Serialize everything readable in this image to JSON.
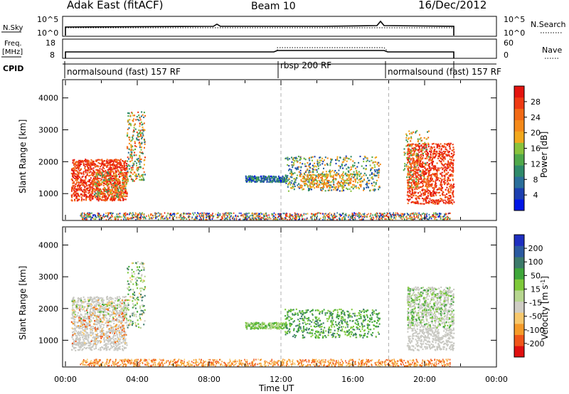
{
  "header": {
    "station": "Adak East (fitACF)",
    "beam": "Beam 10",
    "date": "16/Dec/2012"
  },
  "colors": {
    "power_scale": [
      "#0016e6",
      "#1c3fb0",
      "#2a6e9a",
      "#2f8a6a",
      "#4fa84a",
      "#89c23c",
      "#f2a81d",
      "#f58a1a",
      "#f26a16",
      "#ef3a13",
      "#e4140f"
    ],
    "velocity_scale": [
      "#e01010",
      "#f0561a",
      "#f59b2a",
      "#f7c86d",
      "#cfcdc4",
      "#b7d690",
      "#7ec93a",
      "#3ea63a",
      "#3c7a6a",
      "#2b5aa0",
      "#1e2fc0"
    ],
    "scatter_gray": "#c8c8c2",
    "dash_line": "#b0b0b0"
  },
  "panels": {
    "nsky": {
      "left_label": "N.Sky",
      "left_ticks": [
        "10^5",
        "10^0"
      ],
      "right_ticks": [
        "10^5",
        "10^0"
      ],
      "right_label": "N.Search"
    },
    "freq": {
      "left_label_top": "Freq.",
      "left_label_unit": "[MHz]",
      "left_ticks": [
        "18",
        "8"
      ],
      "right_ticks": [
        "60",
        "0"
      ],
      "right_label": "Nave"
    },
    "cpid": {
      "label": "CPID",
      "segments": [
        {
          "label": "normalsound (fast) 157 RF",
          "start": 0,
          "end": 12
        },
        {
          "label": "rbsp 200 RF",
          "start": 12,
          "end": 18
        },
        {
          "label": "normalsound (fast) 157 RF",
          "start": 18,
          "end": 21.7
        }
      ]
    }
  },
  "chart_data": [
    {
      "type": "heatmap",
      "title": "",
      "quantity": "Power",
      "xlabel": "",
      "ylabel": "Slant Range [km]",
      "xlim": [
        0,
        24
      ],
      "ylim": [
        180,
        4550
      ],
      "y_ticks": [
        1000,
        2000,
        3000,
        4000
      ],
      "colorbar": {
        "label": "Power [dB]",
        "ticks": [
          4,
          8,
          12,
          16,
          20,
          24,
          28
        ],
        "range": [
          0,
          32
        ]
      },
      "regions": [
        {
          "name": "early evening echoes",
          "t": [
            0.3,
            3.4
          ],
          "range_km": [
            800,
            2100
          ],
          "level_db": "26-30 (red)"
        },
        {
          "name": "near-range plume",
          "t": [
            3.6,
            4.4
          ],
          "range_km": [
            1400,
            3600
          ],
          "level_db": "8-24"
        },
        {
          "name": "midday band",
          "t": [
            10.0,
            12.3
          ],
          "range_km": [
            1350,
            1600
          ],
          "level_db": "6-14"
        },
        {
          "name": "rbsp echo",
          "t": [
            12.2,
            17.5
          ],
          "range_km": [
            1100,
            2200
          ],
          "level_db": "8-22"
        },
        {
          "name": "late echoes",
          "t": [
            19.0,
            21.6
          ],
          "range_km": [
            700,
            2600
          ],
          "level_db": "22-30 (red)"
        },
        {
          "name": "ground scatter band",
          "t": [
            0.8,
            21.4
          ],
          "range_km": [
            200,
            420
          ],
          "level_db": "mixed"
        }
      ]
    },
    {
      "type": "heatmap",
      "title": "",
      "quantity": "Velocity",
      "xlabel": "Time UT",
      "ylabel": "Slant Range [km]",
      "xlim": [
        0,
        24
      ],
      "ylim": [
        180,
        4550
      ],
      "x_ticks": [
        "00:00",
        "04:00",
        "08:00",
        "12:00",
        "16:00",
        "20:00",
        "00:00"
      ],
      "y_ticks": [
        1000,
        2000,
        3000,
        4000
      ],
      "colorbar": {
        "label": "Velocity [m s^-1]",
        "ticks": [
          -200,
          -100,
          -50,
          -15,
          15,
          50,
          100,
          200
        ]
      },
      "regions": [
        {
          "name": "early evening echoes",
          "t": [
            0.3,
            3.4
          ],
          "range_km": [
            700,
            2400
          ],
          "level": "ground scatter (gray) with orange"
        },
        {
          "name": "near-range plume",
          "t": [
            3.6,
            4.4
          ],
          "range_km": [
            1400,
            3500
          ],
          "level": "-15 to 50"
        },
        {
          "name": "midday band",
          "t": [
            10.0,
            12.3
          ],
          "range_km": [
            1350,
            1600
          ],
          "level": "15 to 50 (green)"
        },
        {
          "name": "rbsp echo",
          "t": [
            12.2,
            17.5
          ],
          "range_km": [
            1100,
            2000
          ],
          "level": "15 to 100 (green)"
        },
        {
          "name": "late echoes",
          "t": [
            19.0,
            21.6
          ],
          "range_km": [
            700,
            2700
          ],
          "level": "ground scatter (gray) with green"
        },
        {
          "name": "ground scatter band",
          "t": [
            0.8,
            21.4
          ],
          "range_km": [
            200,
            420
          ],
          "level": "-50 (orange)"
        }
      ]
    }
  ]
}
